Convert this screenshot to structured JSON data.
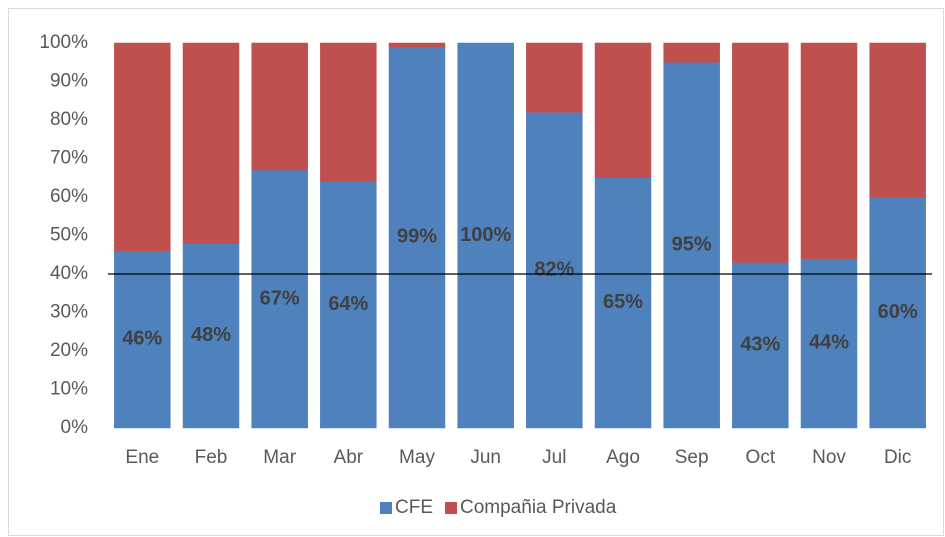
{
  "chart_data": {
    "type": "stacked_bar_100",
    "categories": [
      "Ene",
      "Feb",
      "Mar",
      "Abr",
      "May",
      "Jun",
      "Jul",
      "Ago",
      "Sep",
      "Oct",
      "Nov",
      "Dic"
    ],
    "series": [
      {
        "name": "CFE",
        "color": "#4f81bd",
        "values": [
          46,
          48,
          67,
          64,
          99,
          100,
          82,
          65,
          95,
          43,
          44,
          60
        ],
        "value_labels": [
          "46%",
          "48%",
          "67%",
          "64%",
          "99%",
          "100%",
          "82%",
          "65%",
          "95%",
          "43%",
          "44%",
          "60%"
        ]
      },
      {
        "name": "Compañia Privada",
        "color": "#c0504d",
        "values": [
          54,
          52,
          33,
          36,
          1,
          0,
          18,
          35,
          5,
          57,
          56,
          40
        ]
      }
    ],
    "ylim": [
      0,
      100
    ],
    "yticks": [
      {
        "value": 0,
        "label": "0%"
      },
      {
        "value": 10,
        "label": "10%"
      },
      {
        "value": 20,
        "label": "20%"
      },
      {
        "value": 30,
        "label": "30%"
      },
      {
        "value": 40,
        "label": "40%"
      },
      {
        "value": 50,
        "label": "50%"
      },
      {
        "value": 60,
        "label": "60%"
      },
      {
        "value": 70,
        "label": "70%"
      },
      {
        "value": 80,
        "label": "80%"
      },
      {
        "value": 90,
        "label": "90%"
      },
      {
        "value": 100,
        "label": "100%"
      }
    ],
    "reference_line": 40,
    "legend": "bottom"
  }
}
